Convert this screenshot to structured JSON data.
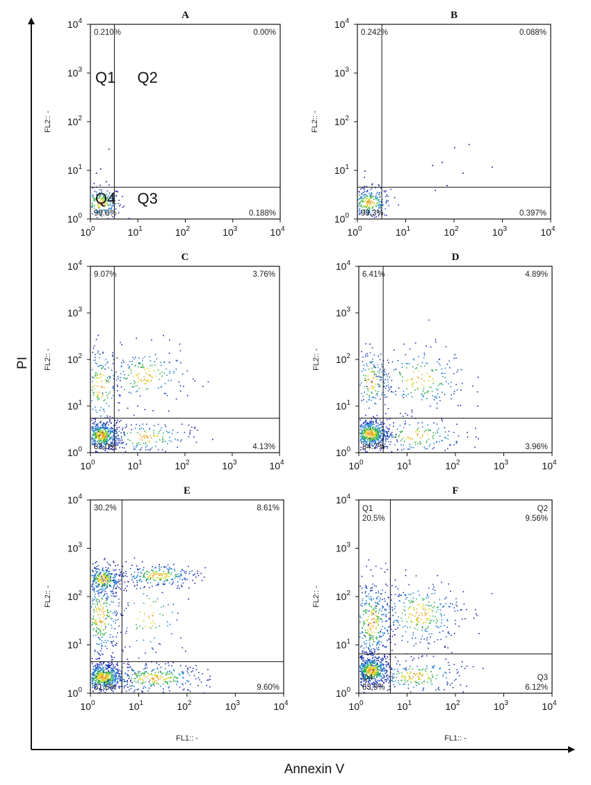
{
  "figure": {
    "x_axis_label": "Annexin V",
    "y_axis_label": "PI"
  },
  "chart_data": [
    {
      "type": "scatter",
      "title": "A",
      "x_scale": "log",
      "y_scale": "log",
      "xlim": [
        1,
        10000
      ],
      "ylim": [
        1,
        10000
      ],
      "x_ticks": [
        1,
        10,
        100,
        1000,
        10000
      ],
      "y_ticks": [
        1,
        10,
        100,
        1000,
        10000
      ],
      "xlabel": "",
      "ylabel": "FL2:: -",
      "gate": {
        "x": 3.2,
        "y": 4.5
      },
      "quadrant_percent": {
        "Q1": "0.210%",
        "Q2": "0.00%",
        "Q3": "0.188%",
        "Q4": "99.6%"
      },
      "quadrant_labels_inside": [
        "Q1",
        "Q2",
        "Q3",
        "Q4"
      ],
      "populations": [
        {
          "name": "",
          "center": [
            1.6,
            2.2
          ],
          "spread": [
            0.22,
            0.16
          ],
          "count": 220
        }
      ],
      "sparse_events": [
        [
          2.4,
          28
        ],
        [
          1.3,
          9
        ],
        [
          1.6,
          11
        ],
        [
          2.1,
          6
        ]
      ]
    },
    {
      "type": "scatter",
      "title": "B",
      "x_scale": "log",
      "y_scale": "log",
      "xlim": [
        1,
        10000
      ],
      "ylim": [
        1,
        10000
      ],
      "x_ticks": [
        1,
        10,
        100,
        1000,
        10000
      ],
      "y_ticks": [
        1,
        10,
        100,
        1000,
        10000
      ],
      "xlabel": "",
      "ylabel": "FL2:: -",
      "gate": {
        "x": 3.2,
        "y": 4.5
      },
      "quadrant_percent": {
        "Q1": "0.242%",
        "Q2": "0.088%",
        "Q3": "0.397%",
        "Q4": "99.3%"
      },
      "populations": [
        {
          "name": "",
          "center": [
            1.7,
            2.2
          ],
          "spread": [
            0.22,
            0.16
          ],
          "count": 260
        }
      ],
      "sparse_events": [
        [
          100,
          30
        ],
        [
          200,
          35
        ],
        [
          35,
          13
        ],
        [
          55,
          15
        ],
        [
          600,
          12
        ],
        [
          150,
          9
        ],
        [
          70,
          5
        ],
        [
          40,
          4
        ],
        [
          1.4,
          10
        ]
      ]
    },
    {
      "type": "scatter",
      "title": "C",
      "x_scale": "log",
      "y_scale": "log",
      "xlim": [
        1,
        10000
      ],
      "ylim": [
        1,
        10000
      ],
      "x_ticks": [
        1,
        10,
        100,
        1000,
        10000
      ],
      "y_ticks": [
        1,
        10,
        100,
        1000,
        10000
      ],
      "xlabel": "",
      "ylabel": "FL2:: -",
      "gate": {
        "x": 3.2,
        "y": 5.5
      },
      "quadrant_percent": {
        "Q1": "9.07%",
        "Q2": "3.76%",
        "Q3": "4.13%",
        "Q4": "83.0%"
      },
      "populations": [
        {
          "name": "",
          "center": [
            1.7,
            2.4
          ],
          "spread": [
            0.2,
            0.16
          ],
          "count": 520
        },
        {
          "name": "",
          "center": [
            1.6,
            28
          ],
          "spread": [
            0.22,
            0.45
          ],
          "count": 180
        },
        {
          "name": "",
          "center": [
            14,
            45
          ],
          "spread": [
            0.45,
            0.3
          ],
          "count": 170
        },
        {
          "name": "",
          "center": [
            14,
            2.2
          ],
          "spread": [
            0.5,
            0.18
          ],
          "count": 160
        }
      ],
      "sparse_events": []
    },
    {
      "type": "scatter",
      "title": "D",
      "x_scale": "log",
      "y_scale": "log",
      "xlim": [
        1,
        10000
      ],
      "ylim": [
        1,
        10000
      ],
      "x_ticks": [
        1,
        10,
        100,
        1000,
        10000
      ],
      "y_ticks": [
        1,
        10,
        100,
        1000,
        10000
      ],
      "xlabel": "",
      "ylabel": "FL2:: -",
      "gate": {
        "x": 3.2,
        "y": 5.5
      },
      "quadrant_percent": {
        "Q1": "6.41%",
        "Q2": "4.89%",
        "Q3": "3.96%",
        "Q4": "84.7%"
      },
      "populations": [
        {
          "name": "",
          "center": [
            1.7,
            2.6
          ],
          "spread": [
            0.2,
            0.16
          ],
          "count": 560
        },
        {
          "name": "",
          "center": [
            1.8,
            35
          ],
          "spread": [
            0.2,
            0.35
          ],
          "count": 160
        },
        {
          "name": "",
          "center": [
            18,
            40
          ],
          "spread": [
            0.5,
            0.35
          ],
          "count": 200
        },
        {
          "name": "",
          "center": [
            15,
            2.3
          ],
          "spread": [
            0.5,
            0.2
          ],
          "count": 160
        }
      ],
      "sparse_events": []
    },
    {
      "type": "scatter",
      "title": "E",
      "x_scale": "log",
      "y_scale": "log",
      "xlim": [
        1,
        10000
      ],
      "ylim": [
        1,
        10000
      ],
      "x_ticks": [
        1,
        10,
        100,
        1000,
        10000
      ],
      "y_ticks": [
        1,
        10,
        100,
        1000,
        10000
      ],
      "xlabel": "FL1:: -",
      "ylabel": "FL2:: -",
      "gate": {
        "x": 4.5,
        "y": 4.5
      },
      "quadrant_percent": {
        "Q1": "30.2%",
        "Q2": "8.61%",
        "Q3": "9.60%",
        "Q4": "51.6%"
      },
      "populations": [
        {
          "name": "",
          "center": [
            1.8,
            2.2
          ],
          "spread": [
            0.22,
            0.15
          ],
          "count": 620
        },
        {
          "name": "",
          "center": [
            1.8,
            230
          ],
          "spread": [
            0.2,
            0.16
          ],
          "count": 300
        },
        {
          "name": "",
          "center": [
            1.6,
            40
          ],
          "spread": [
            0.22,
            0.45
          ],
          "count": 320
        },
        {
          "name": "",
          "center": [
            25,
            280
          ],
          "spread": [
            0.4,
            0.12
          ],
          "count": 240
        },
        {
          "name": "",
          "center": [
            20,
            2.1
          ],
          "spread": [
            0.55,
            0.15
          ],
          "count": 300
        },
        {
          "name": "",
          "center": [
            15,
            40
          ],
          "spread": [
            0.4,
            0.4
          ],
          "count": 80
        }
      ],
      "sparse_events": []
    },
    {
      "type": "scatter",
      "title": "F",
      "x_scale": "log",
      "y_scale": "log",
      "xlim": [
        1,
        10000
      ],
      "ylim": [
        1,
        10000
      ],
      "x_ticks": [
        1,
        10,
        100,
        1000,
        10000
      ],
      "y_ticks": [
        1,
        10,
        100,
        1000,
        10000
      ],
      "xlabel": "FL1:: -",
      "ylabel": "FL2:: -",
      "gate": {
        "x": 4.5,
        "y": 6.5
      },
      "quadrant_percent": {
        "Q1": "20.5%",
        "Q2": "9.56%",
        "Q3": "6.12%",
        "Q4": "63.9%"
      },
      "quadrant_corner_labels": {
        "Q1": "Q1",
        "Q2": "Q2",
        "Q3": "Q3",
        "Q4": "Q4"
      },
      "populations": [
        {
          "name": "",
          "center": [
            1.8,
            3.0
          ],
          "spread": [
            0.2,
            0.16
          ],
          "count": 560
        },
        {
          "name": "",
          "center": [
            1.8,
            30
          ],
          "spread": [
            0.22,
            0.45
          ],
          "count": 360
        },
        {
          "name": "",
          "center": [
            18,
            45
          ],
          "spread": [
            0.45,
            0.35
          ],
          "count": 300
        },
        {
          "name": "",
          "center": [
            15,
            2.3
          ],
          "spread": [
            0.5,
            0.18
          ],
          "count": 200
        }
      ],
      "sparse_events": []
    }
  ]
}
